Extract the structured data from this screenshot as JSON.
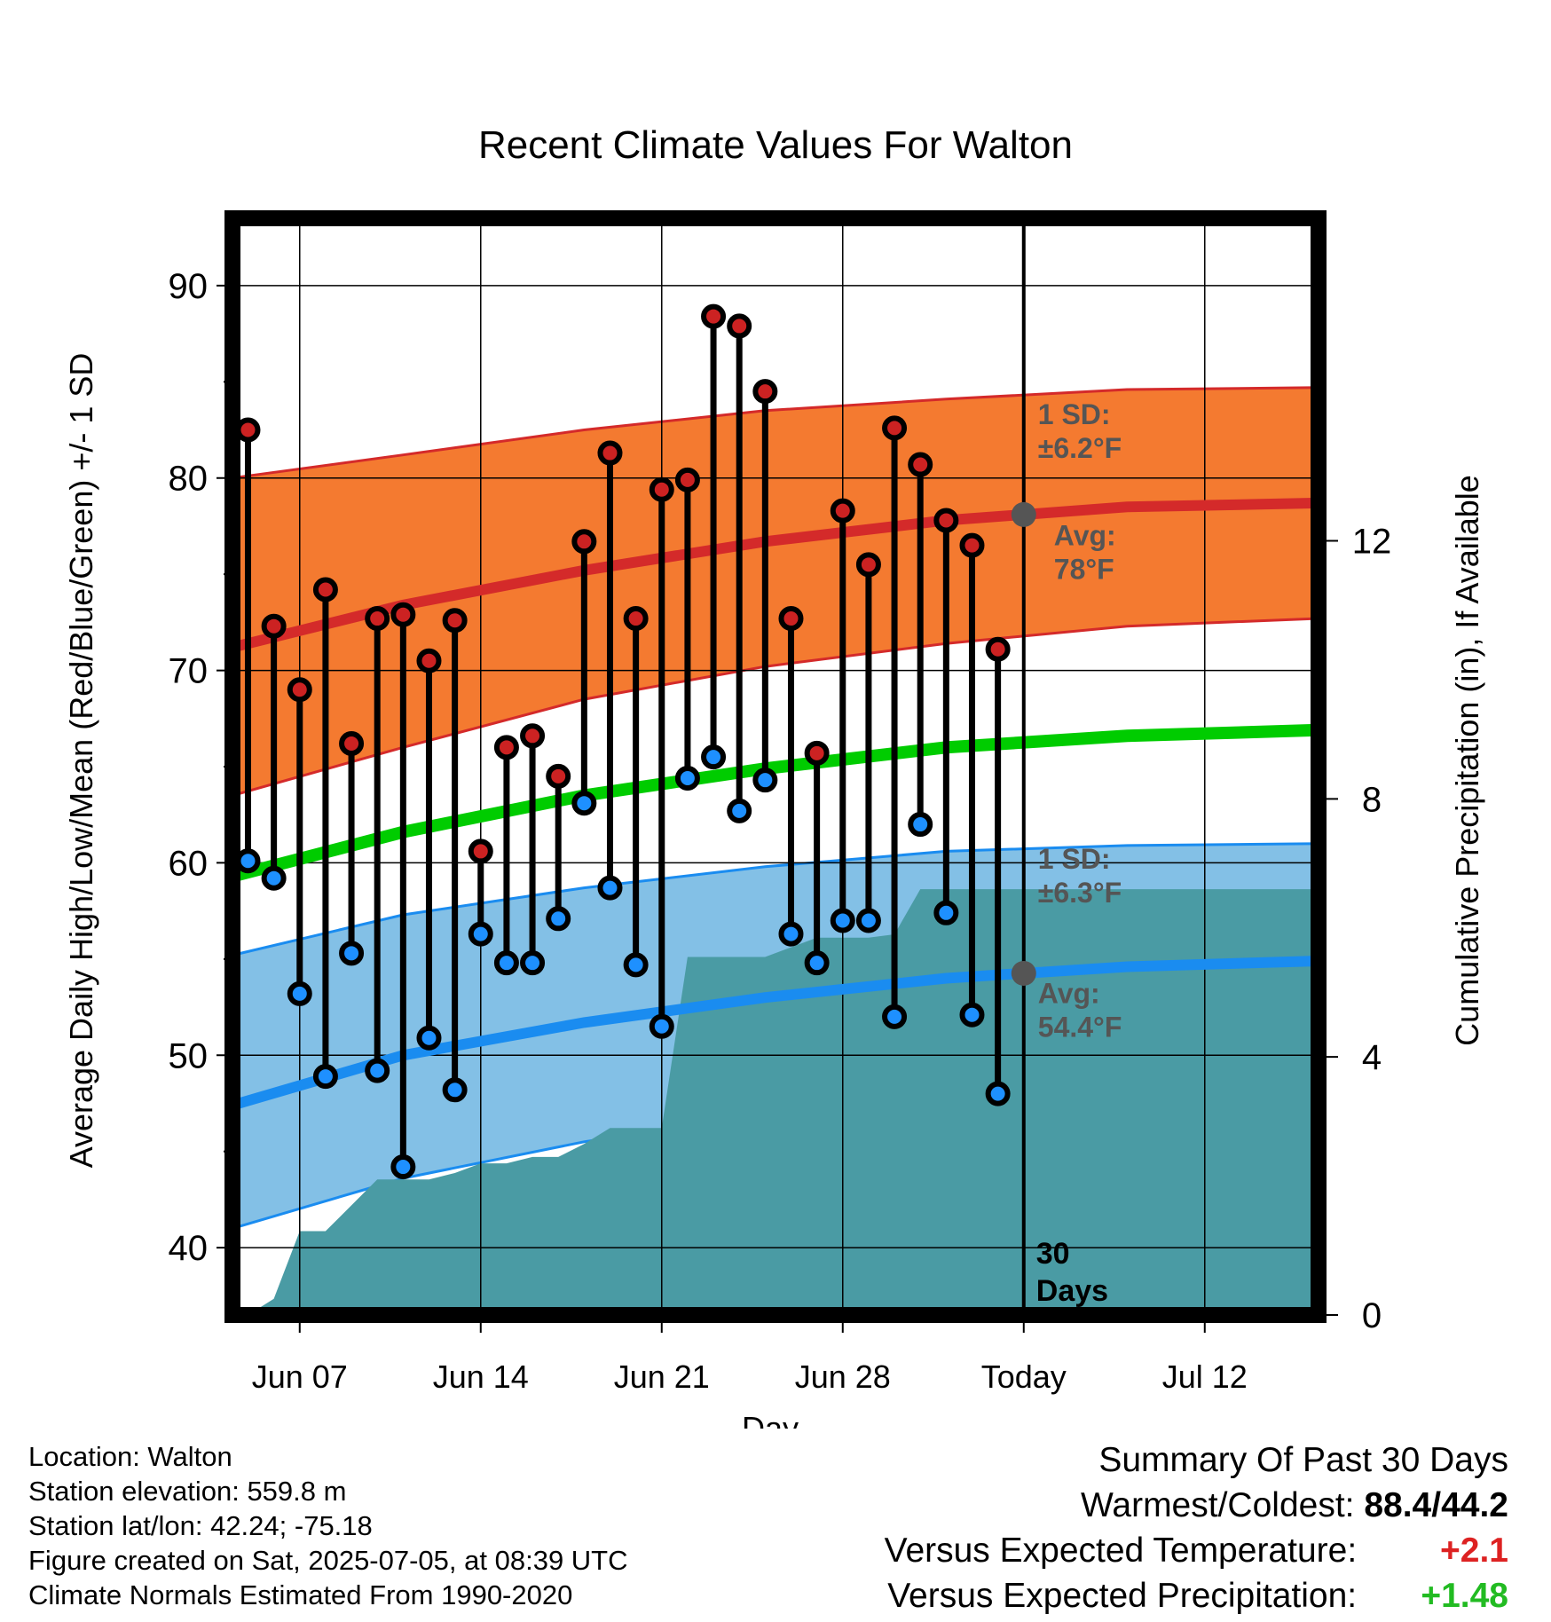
{
  "chart_data": {
    "type": "line",
    "title": "Recent Climate Values For Walton",
    "xlabel": "Day",
    "ylabel": "Average Daily High/Low/Mean (Red/Blue/Green) +/- 1 SD",
    "y2label": "Cumulative Precipitation (in), If Available",
    "xlim": [
      0.4,
      42.4
    ],
    "ylim": [
      36.5,
      93.5
    ],
    "y2lim": [
      0,
      17
    ],
    "x_ticks": [
      {
        "x": 3,
        "label": "Jun 07"
      },
      {
        "x": 10,
        "label": "Jun 14"
      },
      {
        "x": 17,
        "label": "Jun 21"
      },
      {
        "x": 24,
        "label": "Jun 28"
      },
      {
        "x": 31,
        "label": "Today"
      },
      {
        "x": 38,
        "label": "Jul 12"
      }
    ],
    "y_ticks": [
      40,
      50,
      60,
      70,
      80,
      90
    ],
    "y2_ticks": [
      0,
      4,
      8,
      12
    ],
    "grid": true,
    "today_x": 31,
    "today_label": [
      "30",
      "Days"
    ],
    "normals": {
      "x": [
        0.4,
        7,
        14,
        21,
        28,
        35,
        42.4
      ],
      "high_avg": [
        71.2,
        73.4,
        75.2,
        76.7,
        77.8,
        78.5,
        78.7
      ],
      "high_upper": [
        80.0,
        81.2,
        82.5,
        83.5,
        84.1,
        84.6,
        84.7
      ],
      "high_lower": [
        63.5,
        66.0,
        68.5,
        70.2,
        71.4,
        72.3,
        72.7
      ],
      "low_avg": [
        47.4,
        50.0,
        51.7,
        53.0,
        54.0,
        54.6,
        54.9
      ],
      "low_upper": [
        55.2,
        57.3,
        58.7,
        59.8,
        60.6,
        60.9,
        61.0
      ],
      "low_lower": [
        41.0,
        43.6,
        45.5,
        47.0,
        48.0,
        48.6,
        48.8
      ],
      "mean_avg": [
        59.3,
        61.6,
        63.5,
        64.9,
        66.0,
        66.6,
        66.9
      ]
    },
    "series": [
      {
        "name": "High",
        "x": [
          1,
          2,
          3,
          4,
          5,
          6,
          7,
          8,
          9,
          10,
          11,
          12,
          13,
          14,
          15,
          16,
          17,
          18,
          19,
          20,
          21,
          22,
          23,
          24,
          25,
          26,
          27,
          28,
          29,
          30
        ],
        "values": [
          82.5,
          72.3,
          69.0,
          74.2,
          66.2,
          72.7,
          72.9,
          70.5,
          72.6,
          60.6,
          66.0,
          66.6,
          64.5,
          76.7,
          81.3,
          72.7,
          79.4,
          79.9,
          88.4,
          87.9,
          84.5,
          72.7,
          65.7,
          78.3,
          75.5,
          82.6,
          80.7,
          77.8,
          76.5,
          71.1
        ]
      },
      {
        "name": "Low",
        "x": [
          1,
          2,
          3,
          4,
          5,
          6,
          7,
          8,
          9,
          10,
          11,
          12,
          13,
          14,
          15,
          16,
          17,
          18,
          19,
          20,
          21,
          22,
          23,
          24,
          25,
          26,
          27,
          28,
          29,
          30
        ],
        "values": [
          60.1,
          59.2,
          53.2,
          48.9,
          55.3,
          49.2,
          44.2,
          50.9,
          48.2,
          56.3,
          54.8,
          54.8,
          57.1,
          63.1,
          58.7,
          54.7,
          51.5,
          64.4,
          65.5,
          62.7,
          64.3,
          56.3,
          54.8,
          57.0,
          57.0,
          52.0,
          62.0,
          57.4,
          52.1,
          48.0
        ]
      }
    ],
    "precipitation": {
      "x": [
        0.4,
        1,
        2,
        3,
        4,
        5,
        6,
        7,
        8,
        9,
        10,
        11,
        12,
        13,
        14,
        15,
        16,
        17,
        18,
        19,
        20,
        21,
        22,
        23,
        24,
        25,
        26,
        27,
        28,
        29,
        30,
        31,
        42.4
      ],
      "values": [
        0,
        0,
        0.25,
        1.3,
        1.3,
        1.7,
        2.1,
        2.1,
        2.1,
        2.2,
        2.35,
        2.35,
        2.45,
        2.45,
        2.65,
        2.9,
        2.9,
        2.9,
        5.55,
        5.55,
        5.55,
        5.55,
        5.7,
        5.85,
        5.85,
        5.85,
        5.9,
        6.6,
        6.6,
        6.6,
        6.6,
        6.6,
        6.6
      ]
    },
    "annotations": {
      "high_sd": [
        "1 SD:",
        "±6.2°F"
      ],
      "high_avg": [
        "Avg:",
        "78°F"
      ],
      "low_sd": [
        "1 SD:",
        "±6.3°F"
      ],
      "low_avg": [
        "Avg:",
        "54.4°F"
      ]
    },
    "colors": {
      "high_band": "#f47a30",
      "high_line": "#d42a2a",
      "low_band": "#83c0e6",
      "low_line": "#1a8cf0",
      "mean_line": "#00cc00",
      "precip": "#4a9ba4",
      "high_marker": "#cc2222",
      "low_marker": "#1e90ff",
      "today_marker": "#555555"
    }
  },
  "station_info": [
    "Location: Walton",
    "Station elevation: 559.8 m",
    "Station lat/lon: 42.24; -75.18",
    "Figure created on Sat, 2025-07-05, at 08:39 UTC",
    "Climate Normals Estimated From 1990-2020"
  ],
  "summary": {
    "title": "Summary Of Past 30 Days",
    "warmest_coldest_label": "Warmest/Coldest:",
    "warmest_coldest_value": "88.4/44.2",
    "temp_label": "Versus Expected Temperature:",
    "temp_value": "+2.1",
    "temp_color": "#dd2222",
    "precip_label": "Versus Expected Precipitation:",
    "precip_value": "+1.48",
    "precip_color": "#22bb22"
  }
}
